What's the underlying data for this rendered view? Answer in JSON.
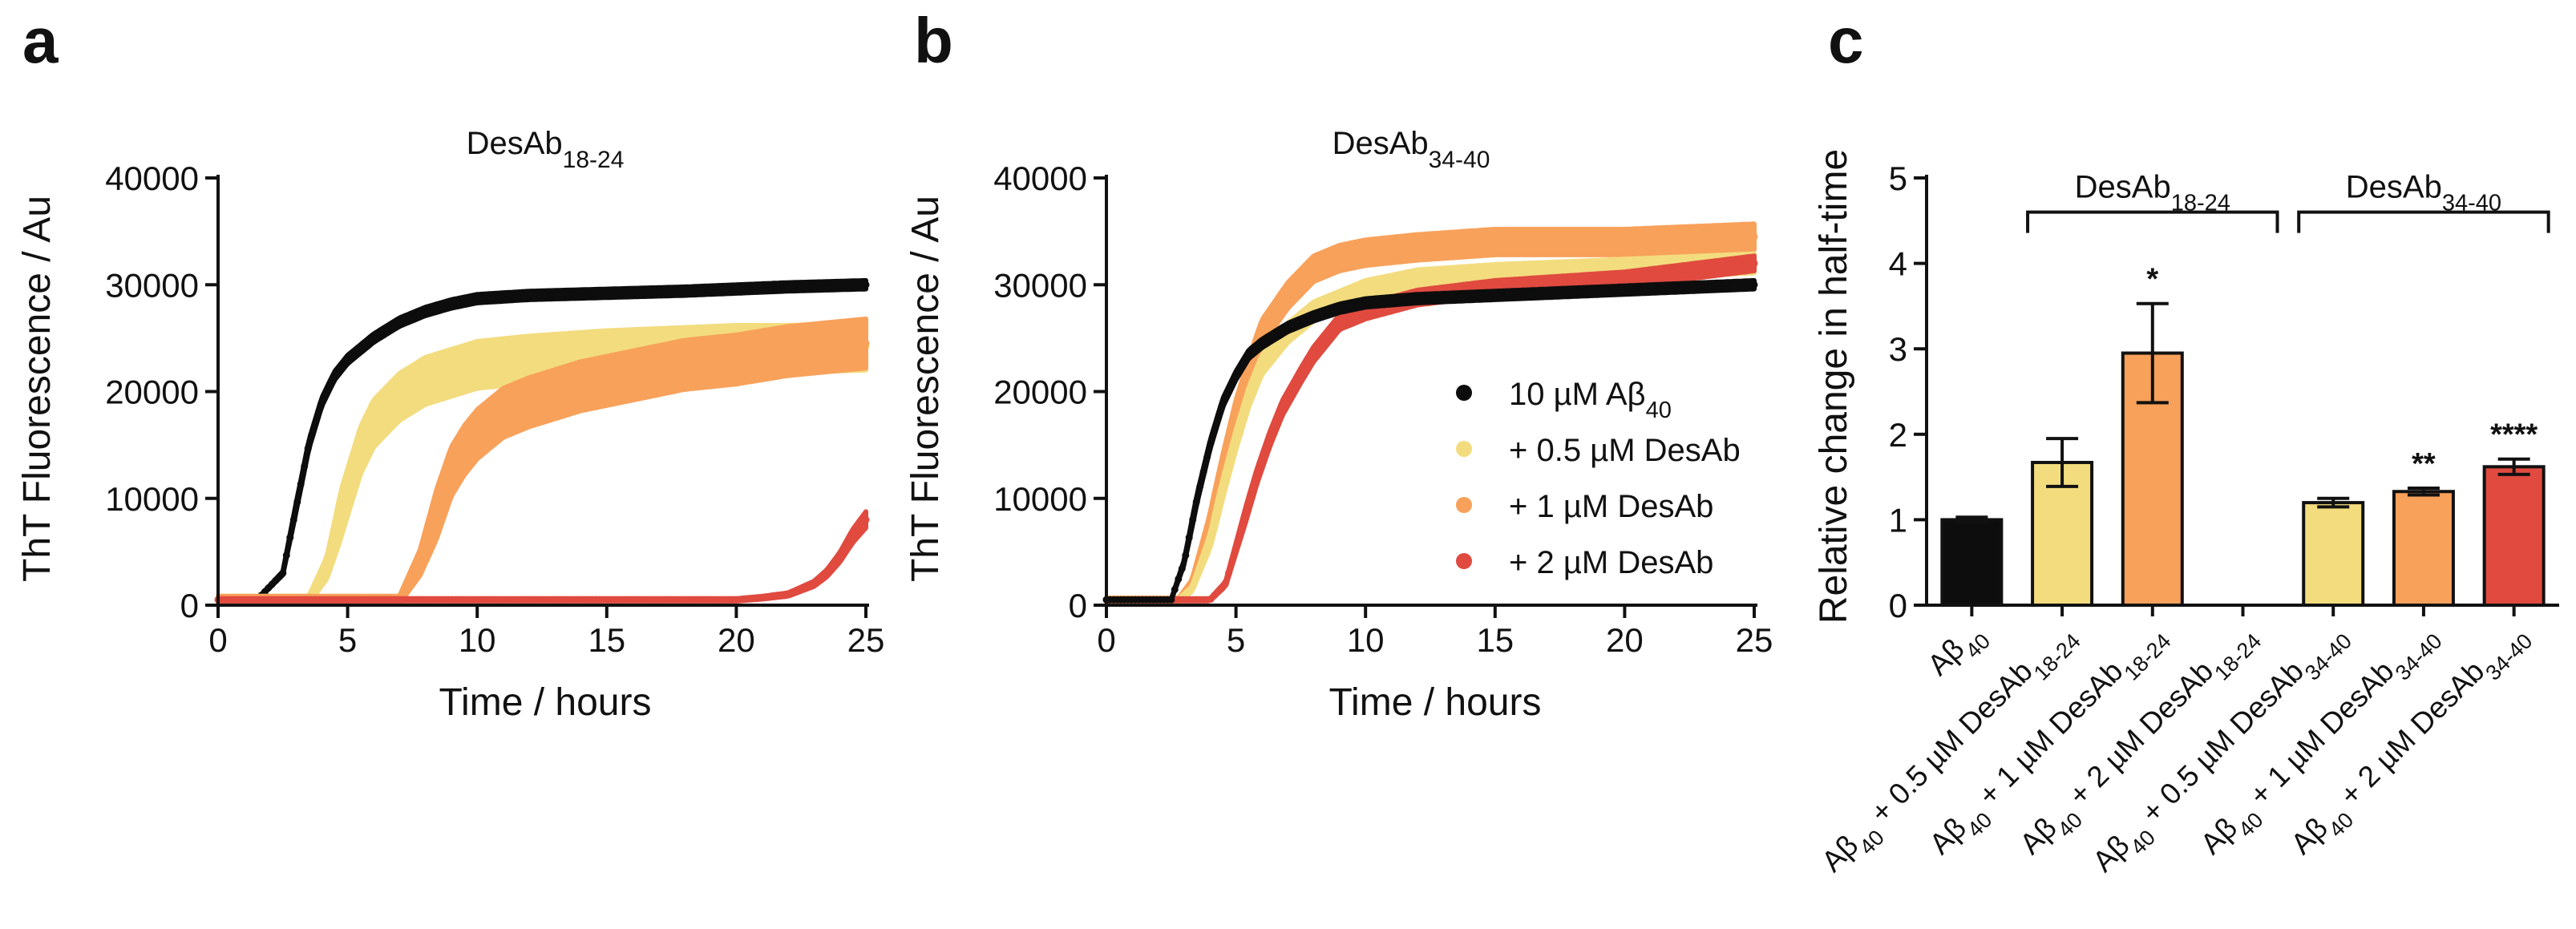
{
  "colors": {
    "black": "#0d0d0d",
    "yellow": "#f3dc7e",
    "orange": "#f8a15a",
    "red": "#e04a3f"
  },
  "chart_data": [
    {
      "panel": "a",
      "type": "scatter",
      "title": "DesAb",
      "title_subscript": "18-24",
      "xlabel": "Time / hours",
      "ylabel": "ThT Fluorescence / Au",
      "xlim": [
        0,
        25
      ],
      "ylim": [
        0,
        40000
      ],
      "xticks": [
        0,
        5,
        10,
        15,
        20,
        25
      ],
      "yticks": [
        0,
        10000,
        20000,
        30000,
        40000
      ],
      "series": [
        {
          "name": "10 µM Aβ40",
          "color_key": "black",
          "x": [
            0,
            1.5,
            2.5,
            3.0,
            3.5,
            4.0,
            4.5,
            5.0,
            6.0,
            7.0,
            8.0,
            9.0,
            10.0,
            12.0,
            15.0,
            18.0,
            20.0,
            22.0,
            25.0
          ],
          "y": [
            500,
            500,
            3000,
            9000,
            15000,
            19000,
            21500,
            23000,
            25000,
            26500,
            27500,
            28200,
            28700,
            29000,
            29200,
            29400,
            29600,
            29800,
            30000
          ],
          "band": 400
        },
        {
          "name": "+ 0.5 µM DesAb",
          "color_key": "yellow",
          "x": [
            0,
            3.5,
            4.2,
            4.8,
            5.5,
            6.0,
            7.0,
            8.0,
            10.0,
            12.0,
            15.0,
            18.0,
            20.0,
            22.0,
            25.0
          ],
          "y": [
            500,
            500,
            3500,
            9000,
            14500,
            17000,
            19500,
            21000,
            22500,
            23000,
            23500,
            23800,
            24000,
            24000,
            24200
          ],
          "band": 2200
        },
        {
          "name": "+ 1 µM DesAb",
          "color_key": "orange",
          "x": [
            0,
            7.0,
            7.8,
            8.5,
            9.0,
            9.5,
            10.0,
            11.0,
            12.0,
            14.0,
            16.0,
            18.0,
            20.0,
            22.0,
            25.0
          ],
          "y": [
            500,
            500,
            4000,
            9000,
            12500,
            14500,
            16000,
            18000,
            19000,
            20500,
            21500,
            22500,
            23000,
            23800,
            24500
          ],
          "band": 2300
        },
        {
          "name": "+ 2 µM DesAb",
          "color_key": "red",
          "x": [
            0,
            20.0,
            21.0,
            22.0,
            23.0,
            23.5,
            24.0,
            24.5,
            25.0
          ],
          "y": [
            500,
            500,
            700,
            1000,
            2000,
            3000,
            4500,
            6500,
            8000
          ],
          "band": 800
        }
      ]
    },
    {
      "panel": "b",
      "type": "scatter",
      "title": "DesAb",
      "title_subscript": "34-40",
      "xlabel": "Time / hours",
      "ylabel": "ThT Fluorescence / Au",
      "xlim": [
        0,
        25
      ],
      "ylim": [
        0,
        40000
      ],
      "xticks": [
        0,
        5,
        10,
        15,
        20,
        25
      ],
      "yticks": [
        0,
        10000,
        20000,
        30000,
        40000
      ],
      "legend_placement": "center-right",
      "series": [
        {
          "name": "+ 1 µM DesAb",
          "color_key": "orange",
          "x": [
            0,
            2.8,
            3.3,
            4.0,
            4.5,
            5.0,
            5.5,
            6.0,
            7.0,
            8.0,
            9.0,
            10.0,
            12.0,
            15.0,
            20.0,
            25.0
          ],
          "y": [
            500,
            500,
            2000,
            7500,
            13000,
            18000,
            22000,
            25500,
            29000,
            31500,
            32500,
            33000,
            33500,
            34000,
            34000,
            34500
          ],
          "band": 1200
        },
        {
          "name": "+ 0.5 µM DesAb",
          "color_key": "yellow",
          "x": [
            0,
            2.8,
            3.3,
            4.0,
            4.5,
            5.0,
            5.5,
            6.0,
            7.0,
            8.0,
            9.0,
            10.0,
            12.0,
            15.0,
            20.0,
            25.0
          ],
          "y": [
            500,
            500,
            1500,
            6000,
            11000,
            15500,
            19500,
            22500,
            25500,
            27500,
            28500,
            29500,
            30500,
            31000,
            31500,
            32000
          ],
          "band": 900
        },
        {
          "name": "+ 2 µM DesAb",
          "color_key": "red",
          "x": [
            0,
            4.0,
            4.6,
            5.2,
            5.8,
            6.3,
            6.8,
            7.5,
            8.0,
            8.5,
            9.0,
            10.0,
            12.0,
            15.0,
            20.0,
            25.0
          ],
          "y": [
            500,
            500,
            2000,
            7000,
            12000,
            15500,
            18500,
            21500,
            23500,
            25000,
            26500,
            27500,
            28800,
            29700,
            30500,
            32000
          ],
          "band": 700
        },
        {
          "name": "10 µM Aβ40",
          "color_key": "black",
          "x": [
            0,
            2.5,
            3.0,
            3.5,
            4.0,
            4.5,
            5.0,
            5.5,
            6.0,
            7.0,
            8.0,
            9.0,
            10.0,
            12.0,
            15.0,
            20.0,
            25.0
          ],
          "y": [
            500,
            500,
            4000,
            10000,
            15000,
            19000,
            21500,
            23500,
            24500,
            26000,
            27000,
            27800,
            28300,
            28700,
            29000,
            29500,
            30000
          ],
          "band": 400
        }
      ]
    },
    {
      "panel": "c",
      "type": "bar",
      "ylabel": "Relative change in half-time",
      "ylim": [
        0,
        5
      ],
      "yticks": [
        0,
        1,
        2,
        3,
        4,
        5
      ],
      "categories": [
        {
          "main": "Aβ",
          "sub": "40",
          "tail": "",
          "tail_sub": ""
        },
        {
          "main": "Aβ",
          "sub": "40",
          "tail": " + 0.5 µM DesAb",
          "tail_sub": "18-24"
        },
        {
          "main": "Aβ",
          "sub": "40",
          "tail": " + 1 µM DesAb",
          "tail_sub": "18-24"
        },
        {
          "main": "Aβ",
          "sub": "40",
          "tail": " + 2 µM DesAb",
          "tail_sub": "18-24"
        },
        {
          "main": "Aβ",
          "sub": "40",
          "tail": " + 0.5 µM DesAb",
          "tail_sub": "34-40"
        },
        {
          "main": "Aβ",
          "sub": "40",
          "tail": " + 1 µM DesAb",
          "tail_sub": "34-40"
        },
        {
          "main": "Aβ",
          "sub": "40",
          "tail": " + 2 µM DesAb",
          "tail_sub": "34-40"
        }
      ],
      "values": [
        1.0,
        1.67,
        2.95,
        null,
        1.2,
        1.33,
        1.62
      ],
      "errors": [
        0.03,
        0.28,
        0.58,
        null,
        0.05,
        0.04,
        0.09
      ],
      "bar_color_keys": [
        "black",
        "yellow",
        "orange",
        null,
        "yellow",
        "orange",
        "red"
      ],
      "significance": [
        "",
        "",
        "*",
        "",
        "",
        "**",
        "****"
      ],
      "groups": [
        {
          "main": "DesAb",
          "sub": "18-24",
          "from": 1,
          "to": 3,
          "level": 4.6
        },
        {
          "main": "DesAb",
          "sub": "34-40",
          "from": 4,
          "to": 6,
          "level": 4.6
        }
      ]
    }
  ],
  "panel_letters": [
    "a",
    "b",
    "c"
  ],
  "legend_entries": [
    {
      "label": "10 µM Aβ",
      "sub": "40",
      "color_key": "black"
    },
    {
      "label": "+ 0.5 µM DesAb",
      "sub": "",
      "color_key": "yellow"
    },
    {
      "label": "+ 1 µM DesAb",
      "sub": "",
      "color_key": "orange"
    },
    {
      "label": "+ 2 µM DesAb",
      "sub": "",
      "color_key": "red"
    }
  ]
}
